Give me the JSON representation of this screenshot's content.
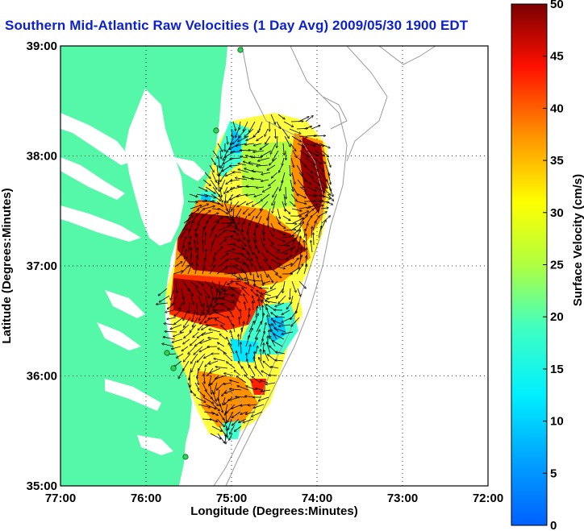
{
  "title": "Southern Mid-Atlantic Raw Velocities (1 Day Avg) 2009/05/30 1900 EDT",
  "map": {
    "xlabel": "Longitude (Degrees:Minutes)",
    "ylabel": "Latitude (Degrees:Minutes)",
    "lon_range": [
      -77,
      -72
    ],
    "lat_range": [
      35,
      39
    ],
    "x_ticks": [
      "77:00",
      "76:00",
      "75:00",
      "74:00",
      "73:00",
      "72:00"
    ],
    "y_ticks": [
      "39:00",
      "38:00",
      "37:00",
      "36:00",
      "35:00"
    ],
    "grid": "dotted",
    "land_color": "#55f7a8",
    "water_color": "#ffffff",
    "isobath_color": "#9a9a9a",
    "vector_color": "#000000"
  },
  "colorbar": {
    "label": "Surface Velocity (cm/s)",
    "range": [
      0,
      50
    ],
    "ticks": [
      "50",
      "45",
      "40",
      "35",
      "30",
      "25",
      "20",
      "15",
      "10",
      "5",
      "0"
    ],
    "colormap": "jet"
  }
}
